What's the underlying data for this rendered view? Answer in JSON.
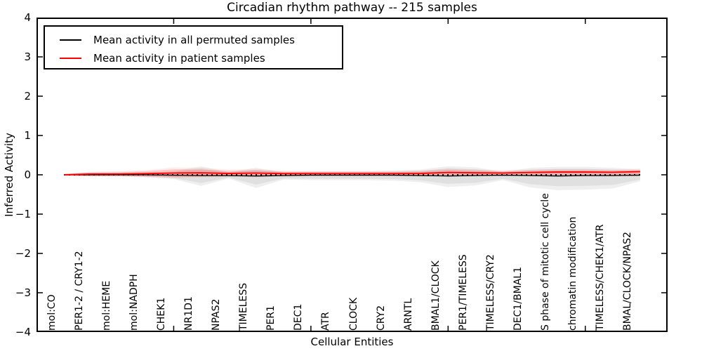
{
  "title": "Circadian rhythm pathway -- 215 samples",
  "axes": {
    "ylabel": "Inferred Activity",
    "xlabel": "Cellular Entities",
    "ytick_labels": [
      "4",
      "3",
      "2",
      "1",
      "0",
      "−1",
      "−2",
      "−3",
      "−4"
    ]
  },
  "legend": {
    "entries": [
      {
        "label": "Mean activity in all permuted samples",
        "color": "#000000"
      },
      {
        "label": "Mean activity in patient samples",
        "color": "#ff0000"
      }
    ]
  },
  "chart_data": {
    "type": "line",
    "title": "Circadian rhythm pathway -- 215 samples",
    "xlabel": "Cellular Entities",
    "ylabel": "Inferred Activity",
    "ylim": [
      -4,
      4
    ],
    "xlim": [
      0,
      23
    ],
    "xticks": [
      5,
      10,
      15,
      20
    ],
    "yticks": [
      4,
      3,
      2,
      1,
      0,
      -1,
      -2,
      -3,
      -4
    ],
    "grid": false,
    "legend_position": "upper left",
    "zero_line": true,
    "categories": [
      "mol:CO",
      "PER1-2 / CRY1-2",
      "mol:HEME",
      "mol:NADPH",
      "CHEK1",
      "NR1D1",
      "NPAS2",
      "TIMELESS",
      "PER1",
      "DEC1",
      "ATR",
      "CLOCK",
      "CRY2",
      "ARNTL",
      "BMAL1/CLOCK",
      "PER1/TIMELESS",
      "TIMELESS/CRY2",
      "DEC1/BMAL1",
      "S phase of mitotic cell cycle",
      "chromatin modification",
      "TIMELESS/CHEK1/ATR",
      "BMAL/CLOCK/NPAS2"
    ],
    "series": [
      {
        "name": "Mean activity in all permuted samples",
        "color": "#000000",
        "width": 1.3,
        "values": [
          0,
          0,
          0,
          0,
          -0.01,
          -0.02,
          -0.02,
          -0.03,
          -0.02,
          -0.01,
          -0.01,
          -0.01,
          -0.01,
          -0.02,
          -0.03,
          -0.02,
          -0.01,
          -0.02,
          -0.03,
          -0.02,
          -0.02,
          -0.01
        ]
      },
      {
        "name": "Mean activity in patient samples",
        "color": "#ff0000",
        "width": 1.8,
        "values": [
          0,
          0.02,
          0.02,
          0.03,
          0.045,
          0.05,
          0.035,
          0.045,
          0.03,
          0.03,
          0.03,
          0.03,
          0.03,
          0.035,
          0.06,
          0.05,
          0.045,
          0.06,
          0.07,
          0.07,
          0.065,
          0.08
        ]
      }
    ],
    "bands": [
      {
        "name": "permuted-sample-range",
        "fill": "#e0e0e0",
        "halo_fill": "#efefef",
        "upper": [
          0.02,
          0.03,
          0.03,
          0.04,
          0.07,
          0.16,
          0.05,
          0.13,
          0.05,
          0.07,
          0.07,
          0.07,
          0.08,
          0.1,
          0.16,
          0.14,
          0.06,
          0.13,
          0.15,
          0.15,
          0.13,
          0.1
        ],
        "lower": [
          -0.02,
          -0.03,
          -0.03,
          -0.05,
          -0.08,
          -0.21,
          -0.07,
          -0.25,
          -0.09,
          -0.1,
          -0.1,
          -0.1,
          -0.11,
          -0.14,
          -0.23,
          -0.2,
          -0.1,
          -0.24,
          -0.29,
          -0.28,
          -0.26,
          -0.12
        ]
      },
      {
        "name": "patient-sample-range",
        "fill": "rgba(255,0,0,0.17)",
        "halo_fill": "rgba(255,0,0,0.07)",
        "upper": [
          0.02,
          0.06,
          0.07,
          0.09,
          0.14,
          0.13,
          0.1,
          0.11,
          0.08,
          0.07,
          0.07,
          0.07,
          0.07,
          0.08,
          0.12,
          0.1,
          0.09,
          0.1,
          0.11,
          0.11,
          0.1,
          0.12
        ],
        "lower": [
          -0.02,
          -0.03,
          -0.03,
          -0.04,
          -0.06,
          -0.05,
          -0.04,
          -0.05,
          -0.03,
          -0.02,
          -0.02,
          -0.02,
          -0.02,
          -0.03,
          -0.03,
          -0.03,
          -0.02,
          -0.03,
          -0.03,
          -0.03,
          -0.03,
          -0.02
        ]
      }
    ]
  }
}
